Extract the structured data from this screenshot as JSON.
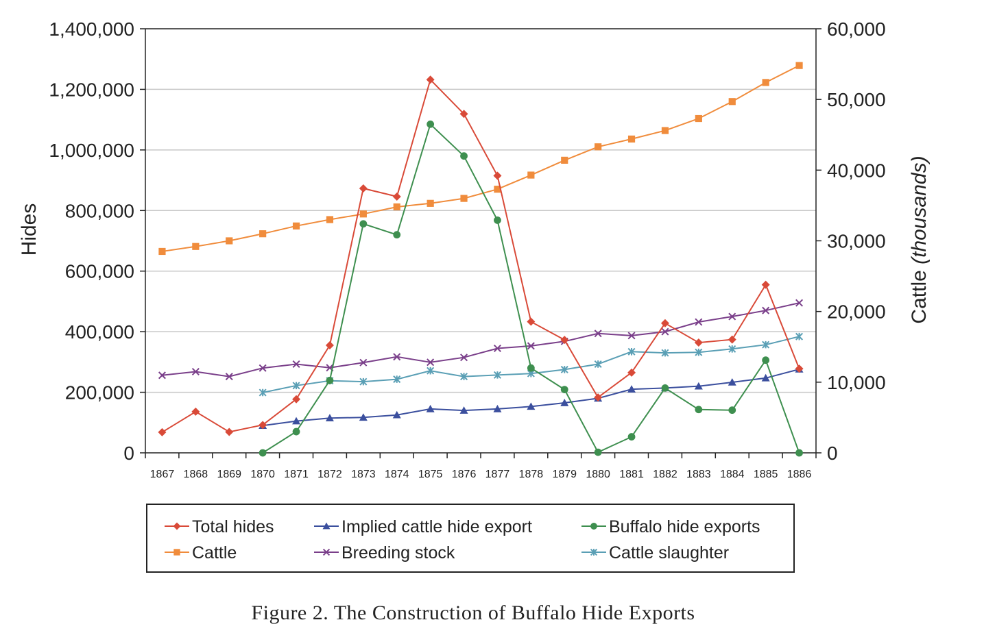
{
  "caption": "Figure 2. The Construction of Buffalo Hide Exports",
  "chart_data": {
    "type": "line",
    "x": [
      1867,
      1868,
      1869,
      1870,
      1871,
      1872,
      1873,
      1874,
      1875,
      1876,
      1877,
      1878,
      1879,
      1880,
      1881,
      1882,
      1883,
      1884,
      1885,
      1886
    ],
    "ylabel": "Hides",
    "y2label_main": "Cattle ",
    "y2label_unit": "(thousands)",
    "ylim": [
      0,
      1400000
    ],
    "y2lim": [
      0,
      60000
    ],
    "yticks": [
      0,
      200000,
      400000,
      600000,
      800000,
      1000000,
      1200000,
      1400000
    ],
    "yticklabels": [
      "0",
      "200,000",
      "400,000",
      "600,000",
      "800,000",
      "1,000,000",
      "1,200,000",
      "1,400,000"
    ],
    "y2ticks": [
      0,
      10000,
      20000,
      30000,
      40000,
      50000,
      60000
    ],
    "y2ticklabels": [
      "0",
      "10,000",
      "20,000",
      "30,000",
      "40,000",
      "50,000",
      "60,000"
    ],
    "grid": true,
    "legend_position": "bottom",
    "series": [
      {
        "name": "Total hides",
        "axis": "left",
        "color": "#d94a38",
        "marker": "diamond",
        "values": [
          68000,
          136000,
          69000,
          92000,
          177000,
          355000,
          873000,
          846000,
          1232000,
          1119000,
          915000,
          433000,
          373000,
          183000,
          265000,
          428000,
          364000,
          374000,
          555000,
          278000
        ]
      },
      {
        "name": "Implied cattle hide export",
        "axis": "left",
        "color": "#3b4f9e",
        "marker": "triangle",
        "values": [
          null,
          null,
          null,
          90000,
          105000,
          115000,
          117000,
          125000,
          145000,
          140000,
          145000,
          153000,
          165000,
          180000,
          210000,
          214000,
          220000,
          233000,
          247000,
          276000
        ]
      },
      {
        "name": "Buffalo hide exports",
        "axis": "left",
        "color": "#3e8f4f",
        "marker": "circle",
        "values": [
          null,
          null,
          null,
          0,
          70000,
          239000,
          756000,
          720000,
          1085000,
          980000,
          768000,
          280000,
          209000,
          2000,
          53000,
          214000,
          143000,
          141000,
          306000,
          0
        ]
      },
      {
        "name": "Cattle",
        "axis": "right",
        "color": "#f08c3c",
        "marker": "square",
        "values": [
          28500,
          29200,
          30000,
          31000,
          32100,
          33000,
          33800,
          34800,
          35300,
          36000,
          37300,
          39300,
          41400,
          43300,
          44400,
          45600,
          47300,
          49700,
          52400,
          54800
        ]
      },
      {
        "name": "Breeding stock",
        "axis": "left",
        "color": "#7a3f8a",
        "marker": "x",
        "values": [
          256000,
          268000,
          252000,
          280000,
          293000,
          281000,
          298000,
          317000,
          299000,
          315000,
          345000,
          353000,
          368000,
          394000,
          387000,
          400000,
          432000,
          450000,
          470000,
          495000
        ]
      },
      {
        "name": "Cattle slaughter",
        "axis": "left",
        "color": "#5a9fb5",
        "marker": "star",
        "values": [
          null,
          null,
          null,
          199000,
          222000,
          238000,
          235000,
          243000,
          271000,
          252000,
          257000,
          262000,
          275000,
          293000,
          334000,
          330000,
          332000,
          343000,
          357000,
          384000
        ]
      }
    ]
  }
}
